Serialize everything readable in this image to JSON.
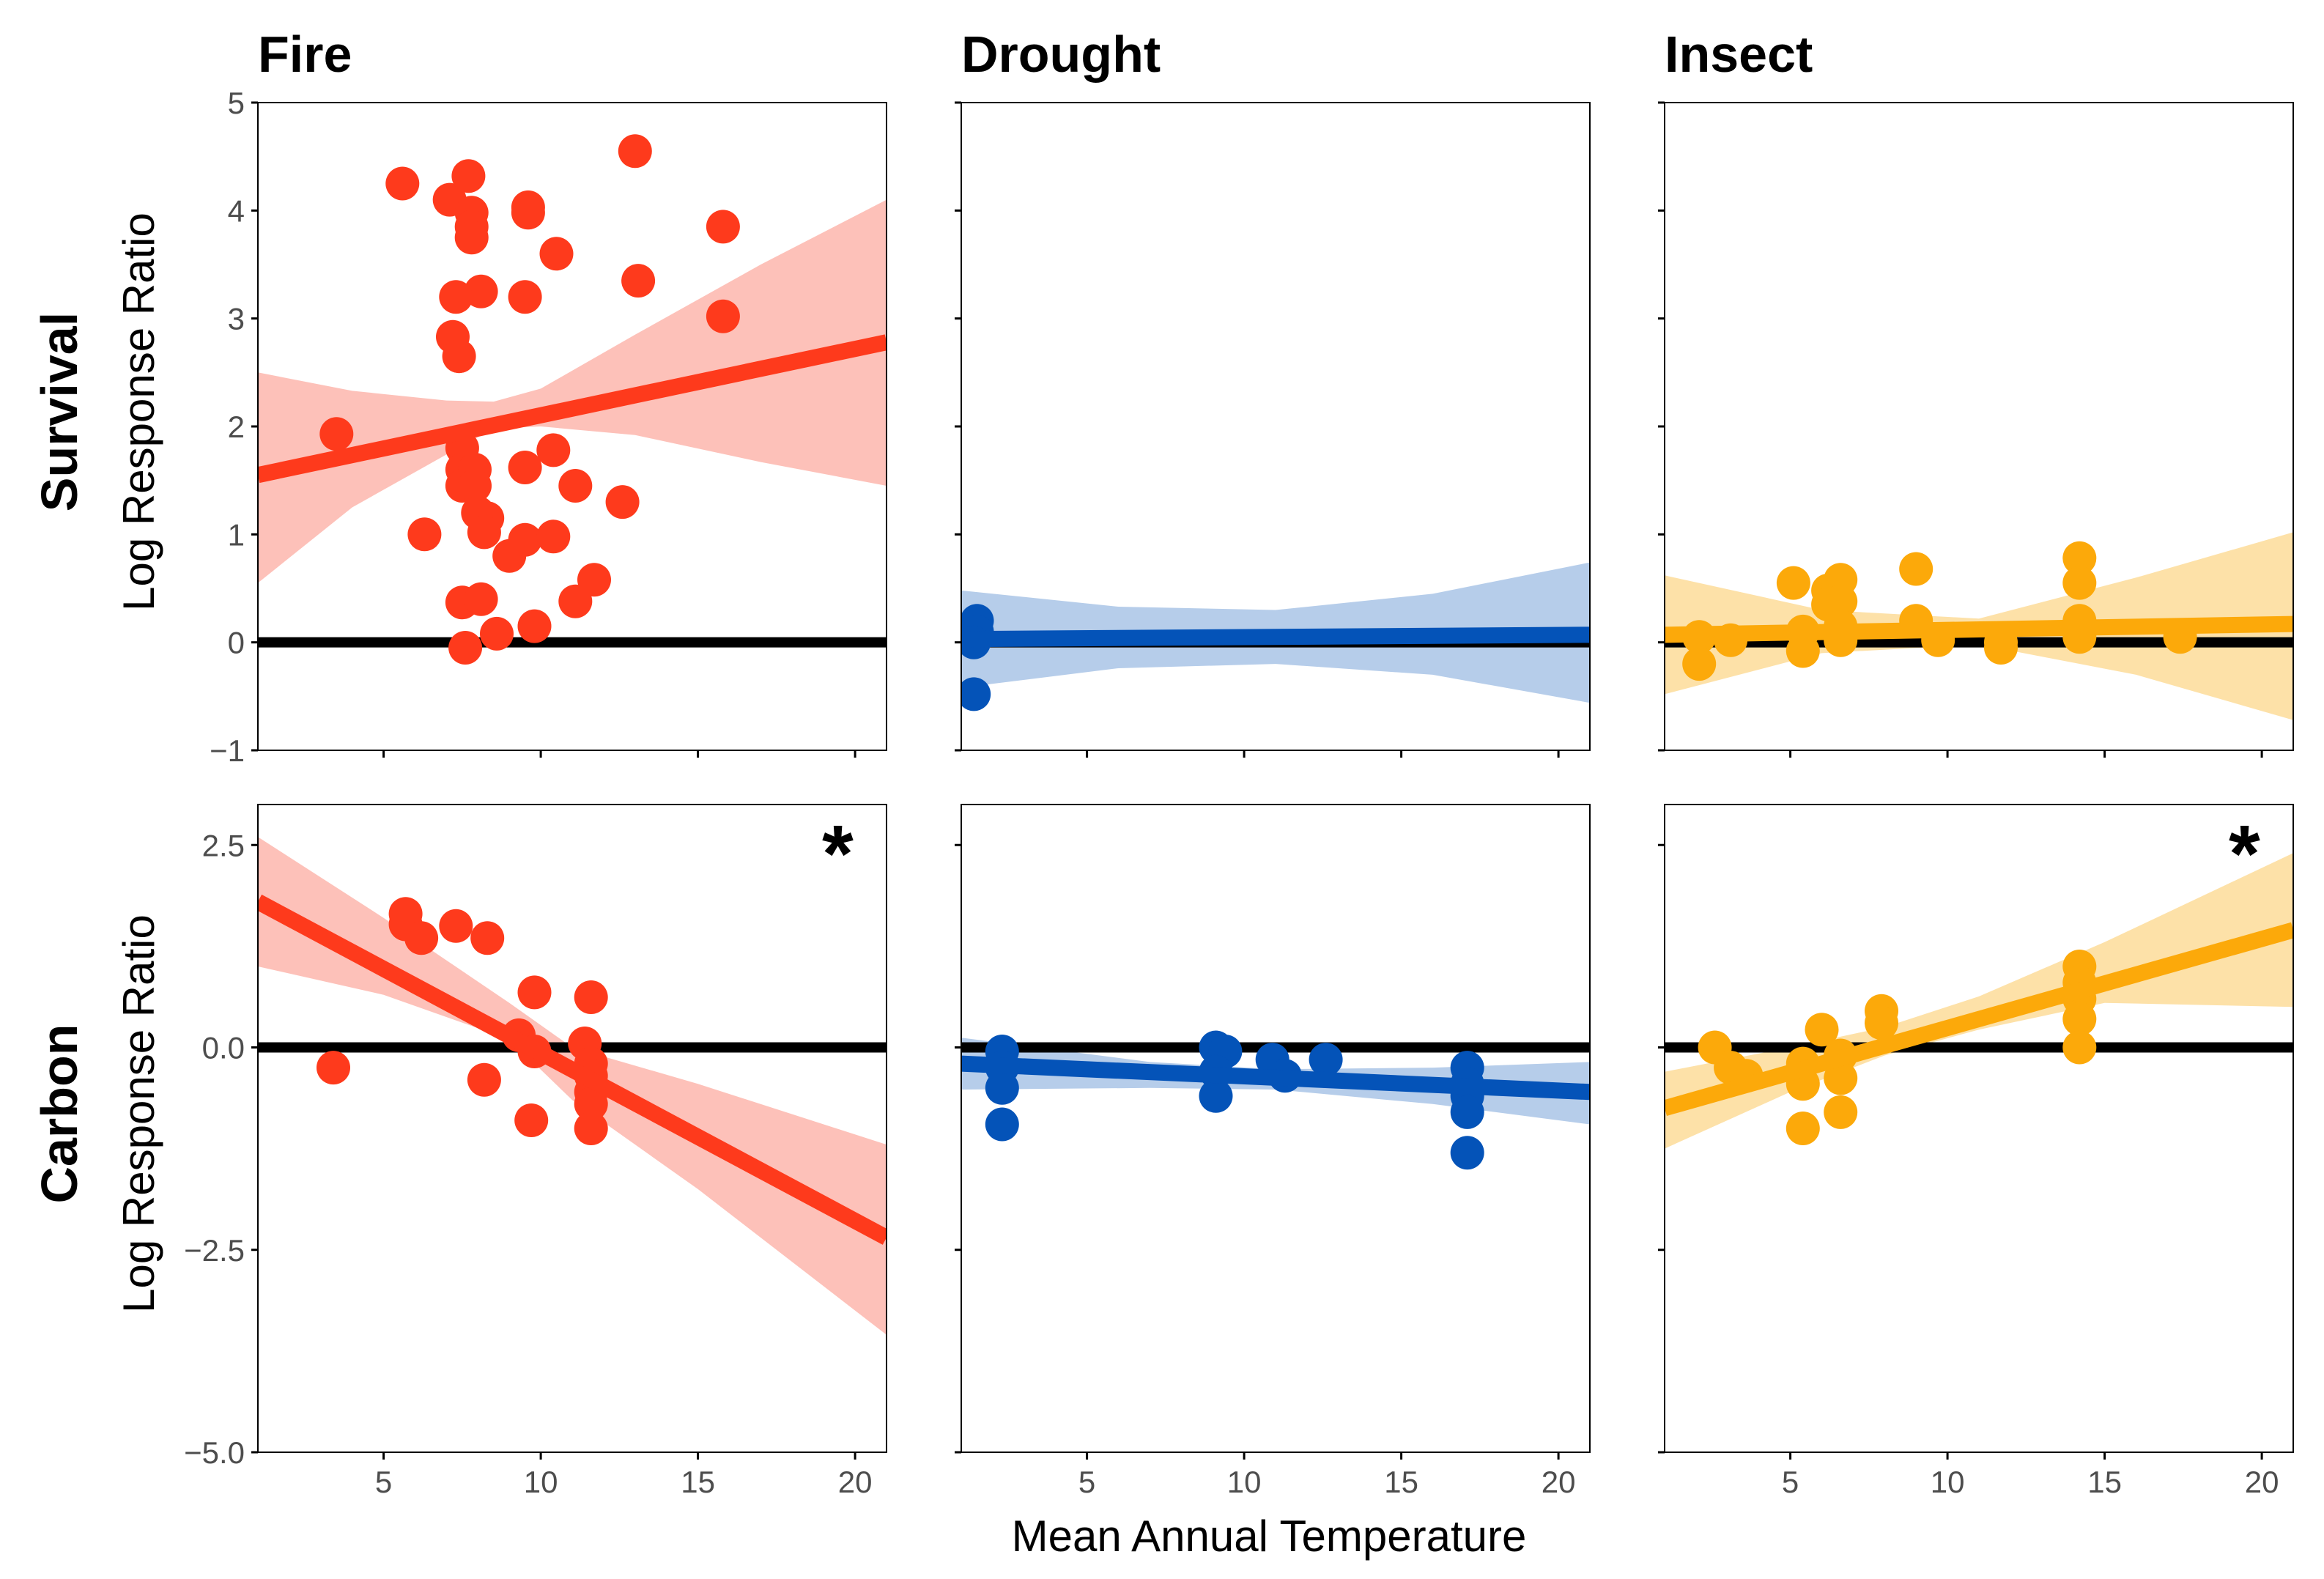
{
  "chart_data": {
    "type": "scatter",
    "columns": [
      "Fire",
      "Drought",
      "Insect"
    ],
    "rows": [
      "Survival",
      "Carbon"
    ],
    "ylabel": "Log Response Ratio",
    "xlabel": "Mean Annual Temperature",
    "xlim": [
      1,
      21
    ],
    "x_ticks": [
      5,
      10,
      15,
      20
    ],
    "x_tick_labels": [
      "5",
      "10",
      "15",
      "20"
    ],
    "rows_axes": {
      "Survival": {
        "ylim": [
          -1,
          5
        ],
        "y_ticks": [
          -1,
          0,
          1,
          2,
          3,
          4,
          5
        ],
        "y_tick_labels": [
          "−1",
          "0",
          "1",
          "2",
          "3",
          "4",
          "5"
        ]
      },
      "Carbon": {
        "ylim": [
          -5,
          3
        ],
        "y_ticks": [
          -5,
          -2.5,
          0,
          2.5
        ],
        "y_tick_labels": [
          "−5.0",
          "−2.5",
          "0.0",
          "2.5"
        ]
      }
    },
    "colors": {
      "Fire": "#fe3a1c",
      "Drought": "#0453b8",
      "Insect": "#fca90a",
      "zero_line": "#000000"
    },
    "band_colors": {
      "Fire": "#fdc1b9",
      "Drought": "#b6cdea",
      "Insect": "#fde1a8"
    },
    "panels": [
      {
        "row": "Survival",
        "col": "Fire",
        "significant": false,
        "points": [
          [
            3.5,
            1.93
          ],
          [
            5.6,
            4.25
          ],
          [
            7.1,
            4.1
          ],
          [
            7.7,
            4.32
          ],
          [
            7.8,
            3.98
          ],
          [
            7.8,
            3.85
          ],
          [
            7.8,
            3.75
          ],
          [
            8.1,
            3.25
          ],
          [
            7.3,
            3.2
          ],
          [
            7.2,
            2.83
          ],
          [
            7.4,
            2.65
          ],
          [
            9.6,
            4.03
          ],
          [
            9.6,
            3.98
          ],
          [
            13.0,
            4.55
          ],
          [
            10.5,
            3.6
          ],
          [
            13.1,
            3.35
          ],
          [
            9.5,
            3.2
          ],
          [
            15.8,
            3.85
          ],
          [
            15.8,
            3.02
          ],
          [
            7.5,
            1.8
          ],
          [
            7.5,
            1.6
          ],
          [
            7.9,
            1.6
          ],
          [
            7.5,
            1.45
          ],
          [
            7.9,
            1.45
          ],
          [
            9.5,
            1.62
          ],
          [
            10.4,
            1.78
          ],
          [
            11.1,
            1.45
          ],
          [
            12.6,
            1.3
          ],
          [
            6.3,
            1.0
          ],
          [
            8.0,
            1.2
          ],
          [
            8.3,
            1.15
          ],
          [
            8.2,
            1.02
          ],
          [
            9.0,
            0.8
          ],
          [
            9.5,
            0.95
          ],
          [
            10.4,
            0.98
          ],
          [
            7.5,
            0.37
          ],
          [
            8.1,
            0.4
          ],
          [
            11.7,
            0.58
          ],
          [
            11.1,
            0.38
          ],
          [
            9.8,
            0.15
          ],
          [
            8.6,
            0.08
          ],
          [
            7.6,
            -0.05
          ]
        ],
        "fit": [
          [
            1,
            1.55
          ],
          [
            21,
            2.78
          ]
        ],
        "ci_upper": [
          [
            1,
            2.5
          ],
          [
            4,
            2.33
          ],
          [
            7,
            2.24
          ],
          [
            8.5,
            2.23
          ],
          [
            10,
            2.35
          ],
          [
            13,
            2.85
          ],
          [
            17,
            3.5
          ],
          [
            21,
            4.1
          ]
        ],
        "ci_lower": [
          [
            1,
            0.55
          ],
          [
            4,
            1.25
          ],
          [
            7,
            1.74
          ],
          [
            8.5,
            1.98
          ],
          [
            10,
            2.0
          ],
          [
            13,
            1.92
          ],
          [
            17,
            1.67
          ],
          [
            21,
            1.45
          ]
        ]
      },
      {
        "row": "Survival",
        "col": "Drought",
        "significant": false,
        "points": [
          [
            1.5,
            0.2
          ],
          [
            1.5,
            0.1
          ],
          [
            1.4,
            0.0
          ],
          [
            1.4,
            -0.48
          ]
        ],
        "fit": [
          [
            1,
            0.03
          ],
          [
            21,
            0.07
          ]
        ],
        "ci_upper": [
          [
            1,
            0.48
          ],
          [
            6,
            0.33
          ],
          [
            11,
            0.3
          ],
          [
            16,
            0.45
          ],
          [
            21,
            0.74
          ]
        ],
        "ci_lower": [
          [
            1,
            -0.42
          ],
          [
            6,
            -0.24
          ],
          [
            11,
            -0.2
          ],
          [
            16,
            -0.3
          ],
          [
            21,
            -0.56
          ]
        ]
      },
      {
        "row": "Survival",
        "col": "Insect",
        "significant": false,
        "points": [
          [
            2.1,
            0.05
          ],
          [
            2.1,
            -0.2
          ],
          [
            3.1,
            0.02
          ],
          [
            5.1,
            0.55
          ],
          [
            5.4,
            0.1
          ],
          [
            5.4,
            -0.08
          ],
          [
            6.2,
            0.48
          ],
          [
            6.2,
            0.35
          ],
          [
            6.6,
            0.58
          ],
          [
            6.6,
            0.38
          ],
          [
            6.6,
            0.15
          ],
          [
            6.6,
            0.02
          ],
          [
            9.0,
            0.68
          ],
          [
            9.0,
            0.2
          ],
          [
            9.7,
            0.02
          ],
          [
            11.7,
            0.0
          ],
          [
            11.7,
            -0.05
          ],
          [
            14.2,
            0.78
          ],
          [
            14.2,
            0.55
          ],
          [
            14.2,
            0.2
          ],
          [
            14.2,
            0.05
          ],
          [
            17.4,
            0.05
          ]
        ],
        "fit": [
          [
            1,
            0.07
          ],
          [
            21,
            0.17
          ]
        ],
        "ci_upper": [
          [
            1,
            0.62
          ],
          [
            6,
            0.3
          ],
          [
            11,
            0.22
          ],
          [
            16,
            0.6
          ],
          [
            21,
            1.02
          ]
        ],
        "ci_lower": [
          [
            1,
            -0.48
          ],
          [
            6,
            -0.1
          ],
          [
            11,
            -0.02
          ],
          [
            16,
            -0.3
          ],
          [
            21,
            -0.72
          ]
        ]
      },
      {
        "row": "Carbon",
        "col": "Fire",
        "significant": true,
        "points": [
          [
            3.4,
            -0.25
          ],
          [
            5.7,
            1.65
          ],
          [
            5.7,
            1.52
          ],
          [
            6.2,
            1.35
          ],
          [
            7.3,
            1.5
          ],
          [
            8.3,
            1.35
          ],
          [
            8.2,
            -0.4
          ],
          [
            9.3,
            0.15
          ],
          [
            9.8,
            0.68
          ],
          [
            9.8,
            -0.05
          ],
          [
            9.7,
            -0.9
          ],
          [
            11.4,
            0.05
          ],
          [
            11.6,
            0.62
          ],
          [
            11.6,
            -0.2
          ],
          [
            11.6,
            -0.35
          ],
          [
            11.6,
            -0.55
          ],
          [
            11.6,
            -0.7
          ],
          [
            11.6,
            -1.0
          ]
        ],
        "fit": [
          [
            1,
            1.8
          ],
          [
            21,
            -2.35
          ]
        ],
        "ci_upper": [
          [
            1,
            2.6
          ],
          [
            5,
            1.6
          ],
          [
            9,
            0.55
          ],
          [
            11,
            0.0
          ],
          [
            15,
            -0.45
          ],
          [
            21,
            -1.2
          ]
        ],
        "ci_lower": [
          [
            1,
            1.0
          ],
          [
            5,
            0.65
          ],
          [
            9,
            0.1
          ],
          [
            11,
            -0.65
          ],
          [
            15,
            -1.75
          ],
          [
            21,
            -3.55
          ]
        ]
      },
      {
        "row": "Carbon",
        "col": "Drought",
        "significant": false,
        "points": [
          [
            2.3,
            -0.05
          ],
          [
            2.3,
            -0.25
          ],
          [
            2.3,
            -0.5
          ],
          [
            2.3,
            -0.95
          ],
          [
            9.1,
            0.0
          ],
          [
            9.4,
            -0.05
          ],
          [
            9.1,
            -0.3
          ],
          [
            9.1,
            -0.6
          ],
          [
            10.9,
            -0.15
          ],
          [
            11.3,
            -0.35
          ],
          [
            12.6,
            -0.15
          ],
          [
            17.1,
            -0.25
          ],
          [
            17.1,
            -0.45
          ],
          [
            17.1,
            -0.6
          ],
          [
            17.1,
            -0.8
          ],
          [
            17.1,
            -1.3
          ]
        ],
        "fit": [
          [
            1,
            -0.2
          ],
          [
            21,
            -0.55
          ]
        ],
        "ci_upper": [
          [
            1,
            0.12
          ],
          [
            7,
            -0.18
          ],
          [
            11,
            -0.27
          ],
          [
            16,
            -0.25
          ],
          [
            21,
            -0.18
          ]
        ],
        "ci_lower": [
          [
            1,
            -0.52
          ],
          [
            7,
            -0.5
          ],
          [
            11,
            -0.52
          ],
          [
            16,
            -0.7
          ],
          [
            21,
            -0.95
          ]
        ]
      },
      {
        "row": "Carbon",
        "col": "Insect",
        "significant": true,
        "points": [
          [
            2.6,
            0.0
          ],
          [
            3.1,
            -0.25
          ],
          [
            3.6,
            -0.35
          ],
          [
            5.4,
            -0.2
          ],
          [
            5.4,
            -0.45
          ],
          [
            5.4,
            -1.0
          ],
          [
            6.0,
            0.22
          ],
          [
            6.6,
            -0.1
          ],
          [
            6.6,
            -0.38
          ],
          [
            6.6,
            -0.8
          ],
          [
            7.9,
            0.45
          ],
          [
            7.9,
            0.3
          ],
          [
            14.2,
            1.0
          ],
          [
            14.2,
            0.8
          ],
          [
            14.2,
            0.6
          ],
          [
            14.2,
            0.35
          ],
          [
            14.2,
            0.0
          ]
        ],
        "fit": [
          [
            1,
            -0.75
          ],
          [
            21,
            1.45
          ]
        ],
        "ci_upper": [
          [
            1,
            -0.3
          ],
          [
            5,
            0.0
          ],
          [
            8,
            0.25
          ],
          [
            11,
            0.63
          ],
          [
            15,
            1.3
          ],
          [
            21,
            2.4
          ]
        ],
        "ci_lower": [
          [
            1,
            -1.25
          ],
          [
            5,
            -0.55
          ],
          [
            8,
            -0.1
          ],
          [
            11,
            0.22
          ],
          [
            15,
            0.55
          ],
          [
            21,
            0.5
          ]
        ]
      }
    ]
  },
  "star_symbol": "*"
}
